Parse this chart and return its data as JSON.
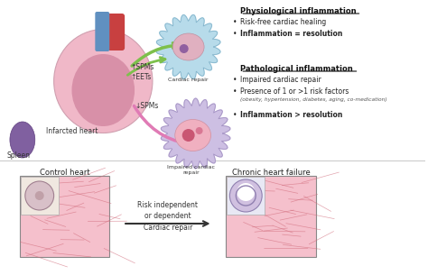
{
  "bg_color": "#ffffff",
  "fig_width": 4.74,
  "fig_height": 3.05,
  "text_spleen": "Spleen",
  "text_infarcted": "Infarcted heart",
  "text_spms_up": "↑SPMs\n↑EETs",
  "text_spms_down": "↓SPMs",
  "text_cardiac_repair": "Cardiac repair",
  "text_impaired": "Impaired cardiac\nrepair",
  "text_physio_title": "Physiological inflammation",
  "text_physio1": "Risk-free cardiac healing",
  "text_physio2": "Inflammation = resolution",
  "text_patho_title": "Pathological inflammation",
  "text_patho1": "Impaired cardiac repair",
  "text_patho2": "Presence of 1 or >1 risk factors",
  "text_patho2b": "(obesity, hypertension, diabetes, aging, co-medication)",
  "text_patho3": "Inflammation > resolution",
  "text_control": "Control heart",
  "text_chronic": "Chronic heart failure",
  "text_risk": "Risk independent\nor dependent",
  "text_cardiac_repair2": "Cardiac repair",
  "arrow_green_color": "#7dc04b",
  "arrow_pink_color": "#e07bb5",
  "cell1_color": "#c8e0f0",
  "cell1_inner": "#d4a0b8",
  "cell2_outer": "#b8a8cc",
  "cell2_inner": "#e8a8b8",
  "heart_pink": "#f0b8c8",
  "heart_red": "#c84040",
  "spleen_color": "#8060a0",
  "tissue_pink": "#f4b8cc",
  "tissue_line": "#d87090"
}
